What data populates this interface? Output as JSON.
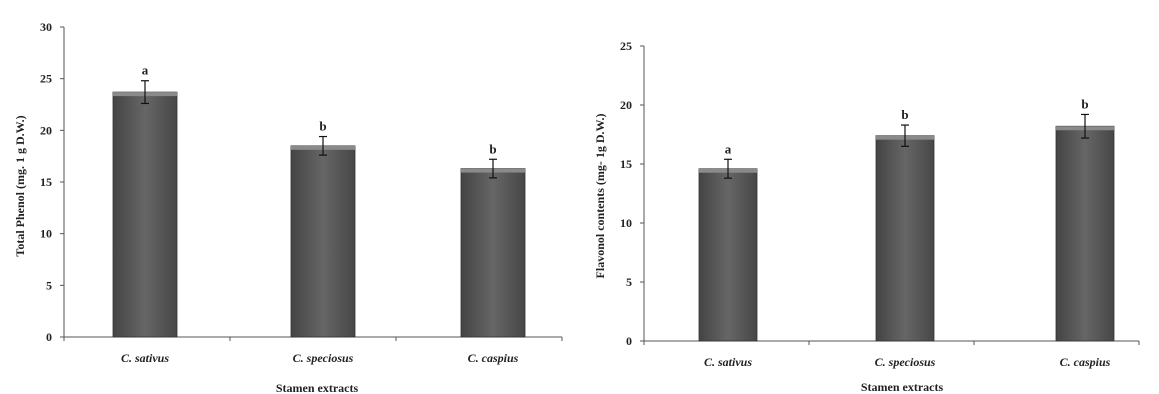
{
  "chart_data": [
    {
      "type": "bar",
      "categories": [
        "C. sativus",
        "C. speciosus",
        "C. caspius"
      ],
      "values": [
        23.7,
        18.5,
        16.3
      ],
      "errors": [
        1.1,
        0.9,
        0.9
      ],
      "significance_letters": [
        "a",
        "b",
        "b"
      ],
      "ylim": [
        0,
        30
      ],
      "yticks": [
        "0",
        "5",
        "10",
        "15",
        "20",
        "25",
        "30"
      ],
      "xlabel": "Stamen extracts",
      "ylabel": "Total Phenol (mg. 1 g D.W.)",
      "bar_color": "#5a5a5a",
      "grid": false
    },
    {
      "type": "bar",
      "categories": [
        "C. sativus",
        "C. speciosus",
        "C. caspius"
      ],
      "values": [
        14.6,
        17.4,
        18.2
      ],
      "errors": [
        0.8,
        0.9,
        1.0
      ],
      "significance_letters": [
        "a",
        "b",
        "b"
      ],
      "ylim": [
        0,
        25
      ],
      "yticks": [
        "0",
        "5",
        "10",
        "15",
        "20",
        "25"
      ],
      "xlabel": "Stamen extracts",
      "ylabel": "Flavonol contents (mg- 1g D.W.)",
      "bar_color": "#5a5a5a",
      "grid": false
    }
  ]
}
